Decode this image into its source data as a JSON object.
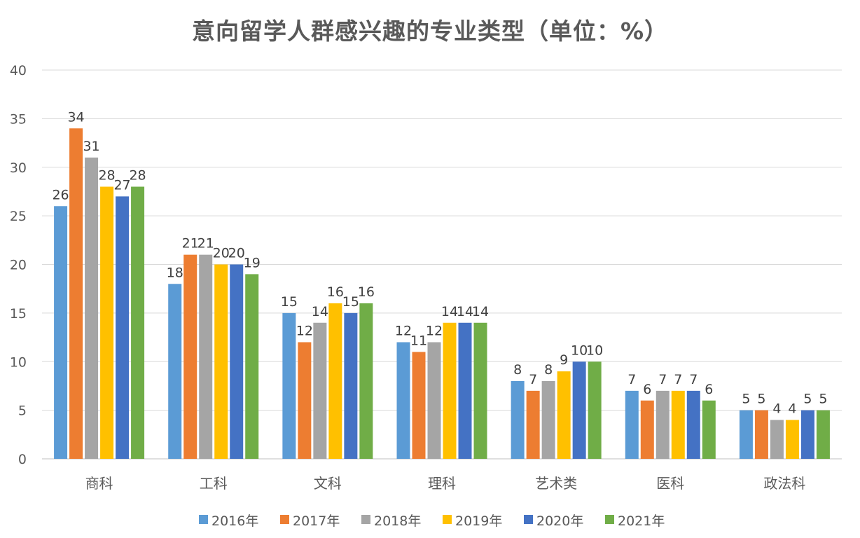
{
  "chart_data": {
    "type": "bar",
    "title": "意向留学人群感兴趣的专业类型（单位：%）",
    "categories": [
      "商科",
      "工科",
      "文科",
      "理科",
      "艺术类",
      "医科",
      "政法科"
    ],
    "series": [
      {
        "name": "2016年",
        "color": "#5B9BD5",
        "values": [
          26,
          18,
          15,
          12,
          8,
          7,
          5
        ]
      },
      {
        "name": "2017年",
        "color": "#ED7D31",
        "values": [
          34,
          21,
          12,
          11,
          7,
          6,
          5
        ]
      },
      {
        "name": "2018年",
        "color": "#A5A5A5",
        "values": [
          31,
          21,
          14,
          12,
          8,
          7,
          4
        ]
      },
      {
        "name": "2019年",
        "color": "#FFC000",
        "values": [
          28,
          20,
          16,
          14,
          9,
          7,
          4
        ]
      },
      {
        "name": "2020年",
        "color": "#4472C4",
        "values": [
          27,
          20,
          15,
          14,
          10,
          7,
          5
        ]
      },
      {
        "name": "2021年",
        "color": "#70AD47",
        "values": [
          28,
          19,
          16,
          14,
          10,
          6,
          5
        ]
      }
    ],
    "ylim": [
      0,
      40
    ],
    "yticks": [
      0,
      5,
      10,
      15,
      20,
      25,
      30,
      35,
      40
    ],
    "grid": true,
    "legend": "bottom",
    "xlabel": "",
    "ylabel": ""
  }
}
